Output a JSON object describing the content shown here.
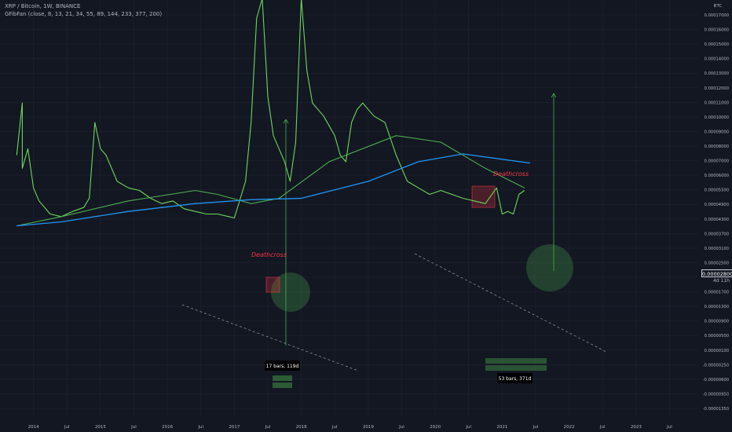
{
  "header": {
    "symbol_line": "XRP / Bitcoin, 1W, BINANCE",
    "indicator_line": "GFibFan (close, 8, 13, 21, 34, 55, 89, 144, 233, 377, 200)"
  },
  "price_axis": {
    "currency": "BTC",
    "ticks": [
      "0.00017000",
      "0.00016000",
      "0.00015000",
      "0.00014000",
      "0.00013000",
      "0.00012000",
      "0.00011000",
      "0.00010000",
      "0.00009000",
      "0.00008000",
      "0.00007000",
      "0.00006000",
      "0.00005500",
      "0.00004900",
      "0.00004300",
      "0.00003700",
      "0.00003100",
      "0.00002500",
      "0.00002100",
      "0.00001700",
      "0.00001300",
      "0.00000900",
      "0.00000500",
      "0.00000100",
      "-0.00000250",
      "-0.00000600",
      "-0.00000950",
      "-0.00001350"
    ],
    "current_price": "0.00002800",
    "countdown": "4d 11h"
  },
  "time_axis": {
    "ticks": [
      "2014",
      "Jul",
      "2015",
      "Jul",
      "2016",
      "Jul",
      "2017",
      "Jul",
      "2018",
      "Jul",
      "2019",
      "Jul",
      "2020",
      "Jul",
      "2021",
      "Jul",
      "2022",
      "Jul",
      "2023",
      "Jul"
    ]
  },
  "annotations": {
    "deathcross_1": "Deathcross",
    "deathcross_2": "Deathcross",
    "bars_1": "17 bars, 119d",
    "bars_2": "53 bars, 371d"
  },
  "colors": {
    "background": "#131722",
    "price_line": "#6fd65a",
    "ma_fast": "#4caf50",
    "ma_slow": "#2196f3",
    "deathcross_text": "#f23645",
    "circle_fill": "#4caf50"
  },
  "chart_data": {
    "type": "line",
    "series": [
      {
        "values": [
          [
            "2013-10",
            5.5e-06
          ],
          [
            "2013-11",
            9.5e-06
          ],
          [
            "2013-11",
            4.5e-06
          ],
          [
            "2013-12",
            6e-06
          ],
          [
            "2014-01",
            3e-06
          ],
          [
            "2014-02",
            2e-06
          ],
          [
            "2014-04",
            1e-06
          ],
          [
            "2014-06",
            8e-07
          ],
          [
            "2014-08",
            1.2e-06
          ],
          [
            "2014-10",
            1.5e-06
          ],
          [
            "2014-11",
            2.2e-06
          ],
          [
            "2014-12",
            8e-06
          ],
          [
            "2015-01",
            6e-06
          ],
          [
            "2015-02",
            5.5e-06
          ],
          [
            "2015-04",
            3.5e-06
          ],
          [
            "2015-06",
            3e-06
          ],
          [
            "2015-08",
            2.8e-06
          ],
          [
            "2015-10",
            2.2e-06
          ],
          [
            "2015-12",
            1.8e-06
          ],
          [
            "2016-02",
            2e-06
          ],
          [
            "2016-04",
            1.4e-06
          ],
          [
            "2016-06",
            1.2e-06
          ],
          [
            "2016-08",
            1e-06
          ],
          [
            "2016-10",
            1e-06
          ],
          [
            "2016-12",
            8e-07
          ],
          [
            "2017-01",
            7e-07
          ],
          [
            "2017-03",
            3.5e-06
          ],
          [
            "2017-04",
            8e-06
          ],
          [
            "2017-05",
            1.6e-05
          ],
          [
            "2017-06",
            1.75e-05
          ],
          [
            "2017-07",
            1e-05
          ],
          [
            "2017-08",
            7e-06
          ],
          [
            "2017-09",
            6e-06
          ],
          [
            "2017-10",
            5e-06
          ],
          [
            "2017-11",
            3.5e-06
          ],
          [
            "2017-12",
            6.5e-06
          ],
          [
            "2018-01",
            1.75e-05
          ],
          [
            "2018-02",
            1.2e-05
          ],
          [
            "2018-03",
            9.5e-06
          ],
          [
            "2018-05",
            8.5e-06
          ],
          [
            "2018-07",
            7e-06
          ],
          [
            "2018-08",
            5.5e-06
          ],
          [
            "2018-09",
            5e-06
          ],
          [
            "2018-10",
            8e-06
          ],
          [
            "2018-11",
            9e-06
          ],
          [
            "2018-12",
            9.5e-06
          ],
          [
            "2019-02",
            8.5e-06
          ],
          [
            "2019-04",
            8e-06
          ],
          [
            "2019-06",
            5.5e-06
          ],
          [
            "2019-08",
            3.5e-06
          ],
          [
            "2019-10",
            3e-06
          ],
          [
            "2019-12",
            2.5e-06
          ],
          [
            "2020-02",
            2.8e-06
          ],
          [
            "2020-04",
            2.5e-06
          ],
          [
            "2020-06",
            2.2e-06
          ],
          [
            "2020-08",
            2e-06
          ],
          [
            "2020-10",
            1.8e-06
          ],
          [
            "2020-12",
            3e-06
          ],
          [
            "2021-01",
            1e-06
          ],
          [
            "2021-02",
            1.2e-06
          ],
          [
            "2021-03",
            1e-06
          ],
          [
            "2021-04",
            2.5e-06
          ],
          [
            "2021-05",
            2.8e-06
          ]
        ]
      },
      {
        "values": [
          [
            "2013-10",
            1e-07
          ],
          [
            "2014-06",
            8e-07
          ],
          [
            "2015-06",
            2e-06
          ],
          [
            "2016-06",
            2.8e-06
          ],
          [
            "2016-10",
            2.5e-06
          ],
          [
            "2017-04",
            1.8e-06
          ],
          [
            "2017-09",
            2.2e-06
          ],
          [
            "2018-06",
            5e-06
          ],
          [
            "2019-06",
            7e-06
          ],
          [
            "2020-02",
            6.5e-06
          ],
          [
            "2020-10",
            4.5e-06
          ],
          [
            "2021-05",
            3e-06
          ]
        ]
      },
      {
        "values": [
          [
            "2013-10",
            1e-07
          ],
          [
            "2014-06",
            4e-07
          ],
          [
            "2015-06",
            1.2e-06
          ],
          [
            "2016-06",
            1.8e-06
          ],
          [
            "2017-04",
            2.1e-06
          ],
          [
            "2018-01",
            2.2e-06
          ],
          [
            "2019-01",
            3.5e-06
          ],
          [
            "2019-10",
            5e-06
          ],
          [
            "2020-06",
            5.6e-06
          ],
          [
            "2021-06",
            4.9e-06
          ]
        ]
      }
    ],
    "ylim": [
      -1.4e-05,
      1.72e-05
    ],
    "xlim": [
      "2013-07",
      "2023-12"
    ],
    "grid": true
  }
}
